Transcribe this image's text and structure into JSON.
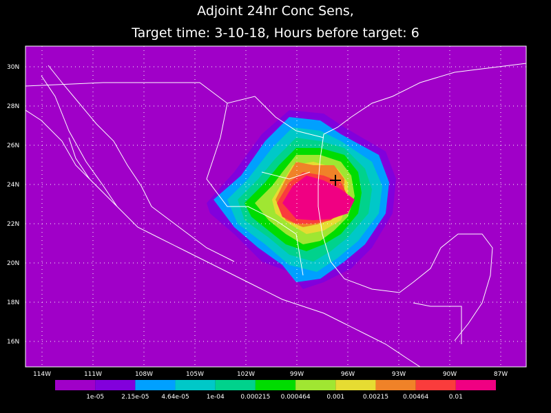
{
  "title": [
    "Adjoint 24hr Conc Sens,",
    "Target time: 3-10-18, Hours before target: 6"
  ],
  "lat_labels": [
    "30N",
    "28N",
    "26N",
    "24N",
    "22N",
    "20N",
    "18N",
    "16N"
  ],
  "lon_labels": [
    "114W",
    "111W",
    "108W",
    "105W",
    "102W",
    "99W",
    "96W",
    "93W",
    "90W",
    "87W"
  ],
  "colorbar": {
    "colors": [
      "#a000c8",
      "#8200dc",
      "#00a0ff",
      "#00c8c8",
      "#00d28c",
      "#00dc00",
      "#a0e632",
      "#e6dc32",
      "#f08228",
      "#fa3c3c",
      "#f00082"
    ],
    "labels": [
      "1e-05",
      "2.15e-05",
      "4.64e-05",
      "1e-04",
      "0.000215",
      "0.000464",
      "0.001",
      "0.00215",
      "0.00464",
      "0.01"
    ]
  }
}
